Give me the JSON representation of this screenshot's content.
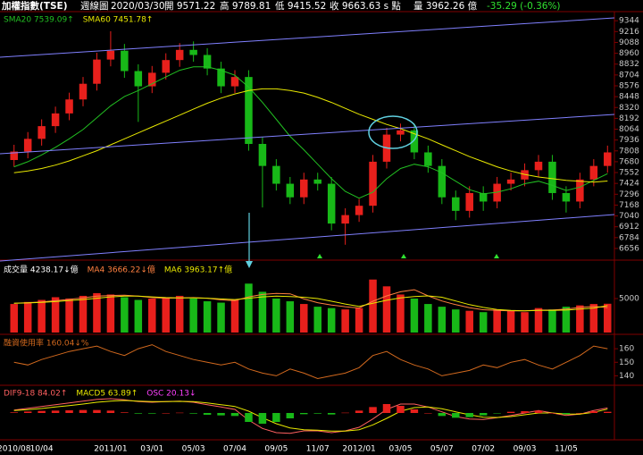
{
  "header": {
    "title": "加權指數(TSE)",
    "period": "週線圖",
    "date": "2020/03/30",
    "open": "開 9571.22",
    "high": "高 9789.81",
    "low": "低 9415.52",
    "close": "收 9663.63 s 點",
    "volume": "量 3962.26 億",
    "change": "-35.29 (-0.36%)"
  },
  "chart_data": [
    {
      "type": "candlestick",
      "up_color": "#e8201c",
      "down_color": "#18b818",
      "categories": [
        "2010/08",
        null,
        "10/04",
        null,
        null,
        null,
        null,
        "2011/01",
        null,
        null,
        "03/01",
        null,
        null,
        "05/03",
        null,
        null,
        "07/04",
        null,
        null,
        "09/05",
        null,
        null,
        "11/07",
        null,
        null,
        "2012/01",
        null,
        null,
        "03/05",
        null,
        null,
        "05/07",
        null,
        null,
        "07/02",
        null,
        null,
        "09/03",
        null,
        null,
        "11/05",
        null,
        null,
        null
      ],
      "open": [
        7700,
        7800,
        7950,
        8100,
        8250,
        8415,
        8600,
        8886,
        8990,
        8750,
        8570,
        8730,
        8880,
        9000,
        8940,
        8780,
        8570,
        8680,
        7890,
        7630,
        7420,
        7260,
        7470,
        7420,
        6950,
        7050,
        7160,
        7680,
        8000,
        8050,
        7790,
        7630,
        7260,
        7100,
        7310,
        7210,
        7420,
        7470,
        7580,
        7680,
        7310,
        7210,
        7470,
        7630
      ],
      "high": [
        7880,
        8030,
        8180,
        8330,
        8495,
        8680,
        8966,
        9220,
        9070,
        8830,
        8810,
        8960,
        9080,
        9100,
        9020,
        8860,
        8760,
        8760,
        7970,
        7710,
        7500,
        7550,
        7550,
        7500,
        7130,
        7240,
        7760,
        8080,
        8130,
        8130,
        7870,
        7710,
        7340,
        7390,
        7390,
        7500,
        7550,
        7660,
        7760,
        7760,
        7390,
        7550,
        7710,
        7870
      ],
      "low": [
        7620,
        7720,
        7870,
        8020,
        8170,
        8335,
        8520,
        8806,
        8670,
        8150,
        8490,
        8650,
        8800,
        8860,
        8700,
        8490,
        8490,
        7810,
        7140,
        7340,
        7180,
        7180,
        7340,
        6870,
        6700,
        6970,
        7080,
        7600,
        7920,
        7710,
        7550,
        7180,
        6990,
        7020,
        7100,
        7130,
        7340,
        7390,
        7500,
        7230,
        7080,
        7130,
        7390,
        7550
      ],
      "close": [
        7800,
        7950,
        8100,
        8250,
        8415,
        8600,
        8886,
        8990,
        8750,
        8570,
        8730,
        8880,
        9000,
        8940,
        8780,
        8570,
        8680,
        7890,
        7630,
        7420,
        7260,
        7470,
        7420,
        6950,
        7050,
        7160,
        7680,
        8000,
        8050,
        7790,
        7630,
        7260,
        7100,
        7310,
        7210,
        7420,
        7470,
        7580,
        7680,
        7310,
        7210,
        7470,
        7630,
        7790
      ],
      "ylim": [
        6550,
        9420
      ],
      "yticks": [
        6656,
        6784,
        6912,
        7040,
        7168,
        7296,
        7424,
        7552,
        7680,
        7808,
        7936,
        8064,
        8192,
        8320,
        8448,
        8576,
        8704,
        8832,
        8960,
        9088,
        9216,
        9344
      ],
      "series": [
        {
          "name": "SMA20 7539.09↑",
          "color": "#22c022",
          "style": "line",
          "values": [
            7620,
            7680,
            7760,
            7850,
            7950,
            8060,
            8200,
            8340,
            8450,
            8520,
            8600,
            8680,
            8760,
            8800,
            8800,
            8760,
            8700,
            8560,
            8380,
            8180,
            7980,
            7820,
            7650,
            7480,
            7330,
            7250,
            7320,
            7480,
            7600,
            7650,
            7620,
            7550,
            7450,
            7350,
            7300,
            7320,
            7360,
            7420,
            7450,
            7400,
            7340,
            7380,
            7460,
            7539.09
          ]
        },
        {
          "name": "SMA60 7451.78↑",
          "color": "#e8e800",
          "style": "line",
          "values": [
            7550,
            7570,
            7600,
            7640,
            7690,
            7750,
            7810,
            7880,
            7950,
            8020,
            8090,
            8160,
            8230,
            8300,
            8370,
            8430,
            8480,
            8520,
            8540,
            8540,
            8520,
            8490,
            8440,
            8380,
            8310,
            8240,
            8180,
            8120,
            8070,
            8010,
            7950,
            7880,
            7810,
            7740,
            7680,
            7620,
            7570,
            7530,
            7500,
            7480,
            7460,
            7450,
            7440,
            7451.78
          ]
        }
      ]
    },
    {
      "type": "volume",
      "ylim": [
        0,
        10000
      ],
      "yticks": [
        5000
      ],
      "series": [
        {
          "name": "成交量 4238.17↓億",
          "color": "#ffffff",
          "style": "bar",
          "values": [
            4200,
            4500,
            4800,
            5200,
            5000,
            5400,
            5800,
            5600,
            5200,
            4800,
            5000,
            5200,
            5400,
            5000,
            4600,
            4400,
            4800,
            7200,
            6000,
            5000,
            4600,
            4200,
            3800,
            3600,
            3400,
            3600,
            7800,
            6800,
            5600,
            5000,
            4200,
            3800,
            3400,
            3200,
            3000,
            3400,
            3200,
            3000,
            3600,
            3400,
            3800,
            4000,
            4200,
            4238.17
          ]
        },
        {
          "name": "MA4 3666.22↓億",
          "color": "#ff8040",
          "style": "line",
          "values": [
            4300,
            4400,
            4500,
            4680,
            4880,
            5100,
            5350,
            5450,
            5500,
            5350,
            5150,
            5050,
            5100,
            5150,
            5050,
            4800,
            4700,
            5250,
            5600,
            5750,
            5700,
            4950,
            4400,
            4050,
            3800,
            3600,
            4600,
            5400,
            6000,
            6300,
            5400,
            4650,
            4100,
            3650,
            3350,
            3250,
            3200,
            3200,
            3300,
            3300,
            3450,
            3700,
            3850,
            3666.22
          ]
        },
        {
          "name": "MA6 3963.17↑億",
          "color": "#e8e800",
          "style": "line",
          "values": [
            4300,
            4350,
            4450,
            4550,
            4700,
            4850,
            5050,
            5250,
            5350,
            5350,
            5250,
            5150,
            5100,
            5100,
            5050,
            4950,
            4850,
            5050,
            5250,
            5350,
            5300,
            5200,
            5000,
            4600,
            4200,
            3850,
            4300,
            4750,
            5100,
            5300,
            5400,
            5200,
            4650,
            4100,
            3700,
            3400,
            3250,
            3200,
            3250,
            3250,
            3300,
            3450,
            3600,
            3963.17
          ]
        }
      ]
    },
    {
      "type": "line",
      "ylim": [
        135,
        168
      ],
      "yticks": [
        140,
        150,
        160
      ],
      "series": [
        {
          "name": "融資使用率 160.04↓%",
          "color": "#d2691e",
          "style": "line",
          "values": [
            150,
            148,
            152,
            155,
            158,
            160,
            162,
            158,
            155,
            160,
            163,
            158,
            155,
            152,
            150,
            148,
            150,
            145,
            142,
            140,
            145,
            142,
            138,
            140,
            142,
            146,
            155,
            158,
            152,
            148,
            145,
            140,
            142,
            144,
            148,
            146,
            150,
            152,
            148,
            145,
            150,
            155,
            162,
            160.04
          ]
        }
      ]
    },
    {
      "type": "macd",
      "ylim": [
        -420,
        420
      ],
      "yticks": [],
      "series": [
        {
          "name": "DIF9-18 84.02↑",
          "color": "#ff6060",
          "style": "line",
          "values": [
            50,
            80,
            110,
            140,
            170,
            200,
            230,
            240,
            220,
            190,
            180,
            190,
            200,
            180,
            140,
            100,
            60,
            -120,
            -260,
            -330,
            -340,
            -300,
            -300,
            -330,
            -300,
            -240,
            -100,
            60,
            150,
            150,
            100,
            20,
            -60,
            -100,
            -110,
            -80,
            -40,
            0,
            40,
            0,
            -40,
            -20,
            40,
            84.02
          ]
        },
        {
          "name": "MACD5 63.89↑",
          "color": "#e8e800",
          "style": "line",
          "values": [
            40,
            55,
            75,
            100,
            125,
            150,
            180,
            200,
            210,
            200,
            190,
            190,
            195,
            190,
            170,
            140,
            110,
            30,
            -80,
            -180,
            -250,
            -280,
            -290,
            -305,
            -305,
            -280,
            -200,
            -90,
            30,
            90,
            100,
            70,
            20,
            -30,
            -70,
            -75,
            -60,
            -30,
            0,
            0,
            -20,
            -20,
            10,
            63.89
          ]
        },
        {
          "name": "OSC 20.13↓",
          "color": "#ff40ff",
          "style": "bar",
          "values": [
            10,
            25,
            35,
            40,
            45,
            50,
            50,
            40,
            10,
            -10,
            -10,
            0,
            5,
            -10,
            -30,
            -40,
            -50,
            -150,
            -180,
            -150,
            -90,
            -20,
            -10,
            -25,
            5,
            40,
            100,
            150,
            120,
            60,
            0,
            -50,
            -80,
            -70,
            -40,
            -5,
            20,
            30,
            40,
            0,
            -20,
            0,
            30,
            20.13
          ]
        }
      ]
    }
  ]
}
